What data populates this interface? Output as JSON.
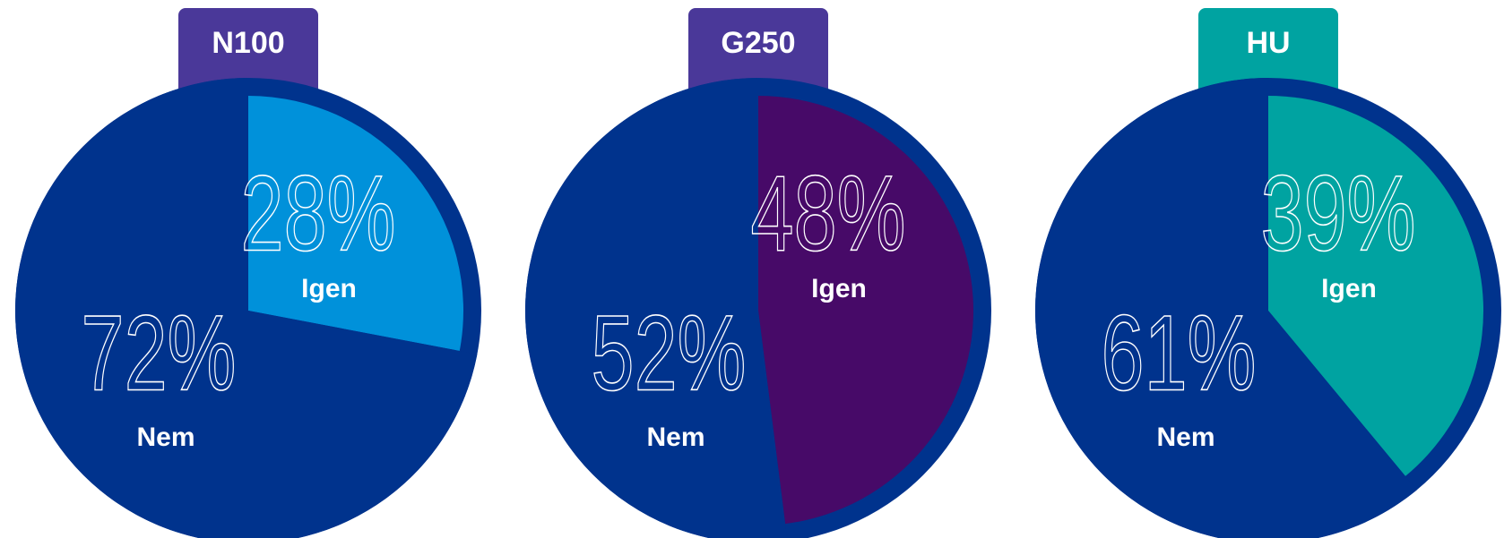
{
  "chart_data": [
    {
      "type": "pie",
      "title": "N100",
      "title_color": "#4a3899",
      "categories": [
        "Igen",
        "Nem"
      ],
      "values": [
        28,
        72
      ],
      "value_labels": [
        "28%",
        "72%"
      ],
      "colors": [
        "#0091da",
        "#00338d"
      ]
    },
    {
      "type": "pie",
      "title": "G250",
      "title_color": "#4a3899",
      "categories": [
        "Igen",
        "Nem"
      ],
      "values": [
        48,
        52
      ],
      "value_labels": [
        "48%",
        "52%"
      ],
      "colors": [
        "#470a68",
        "#00338d"
      ]
    },
    {
      "type": "pie",
      "title": "HU",
      "title_color": "#00a3a1",
      "categories": [
        "Igen",
        "Nem"
      ],
      "values": [
        39,
        61
      ],
      "value_labels": [
        "39%",
        "61%"
      ],
      "colors": [
        "#00a3a1",
        "#00338d"
      ]
    }
  ]
}
